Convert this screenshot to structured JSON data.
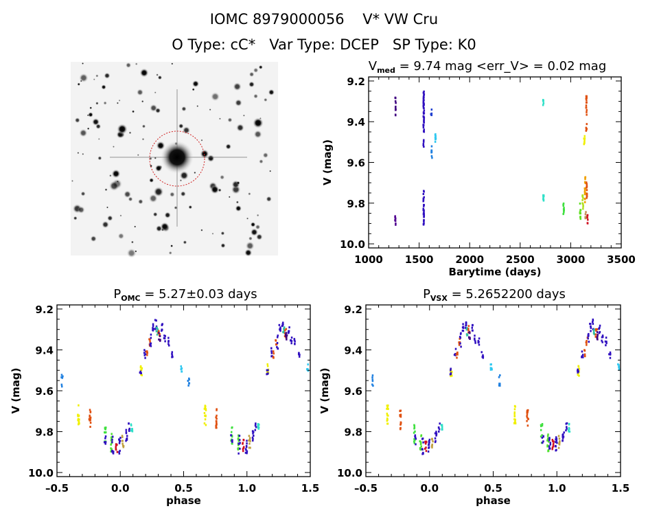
{
  "header": {
    "line1": "IOMC 8979000056    V* VW Cru",
    "line2": "O Type: cC*   Var Type: DCEP   SP Type: K0"
  },
  "image_panel": {
    "type": "star-field-thumbnail",
    "circle_color": "#d02020"
  },
  "chart_data": [
    {
      "type": "scatter",
      "title_main": "V",
      "title_sub": "med",
      "title_rest": " = 9.74 mag <err_V> = 0.02 mag",
      "xlabel": "Barytime (days)",
      "ylabel": "V (mag)",
      "xlim": [
        1000,
        3500
      ],
      "ylim": [
        9.18,
        10.02
      ],
      "y_inverted": true,
      "xticks": [
        "1000",
        "1500",
        "2000",
        "2500",
        "3000",
        "3500"
      ],
      "yticks": [
        "9.2",
        "9.4",
        "9.6",
        "9.8",
        "10.0"
      ],
      "clusters": [
        {
          "x": 1265,
          "y": [
            9.28,
            9.37
          ],
          "n": 12,
          "color": "#400080"
        },
        {
          "x": 1265,
          "y": [
            9.85,
            9.91
          ],
          "n": 8,
          "color": "#500090"
        },
        {
          "x": 1545,
          "y": [
            9.25,
            9.45
          ],
          "n": 40,
          "color": "#3010c0"
        },
        {
          "x": 1545,
          "y": [
            9.49,
            9.53
          ],
          "n": 6,
          "color": "#3010c0"
        },
        {
          "x": 1545,
          "y": [
            9.74,
            9.91
          ],
          "n": 30,
          "color": "#3010c0"
        },
        {
          "x": 1620,
          "y": [
            9.34,
            9.37
          ],
          "n": 5,
          "color": "#2040d0"
        },
        {
          "x": 1625,
          "y": [
            9.52,
            9.59
          ],
          "n": 8,
          "color": "#2080e0"
        },
        {
          "x": 1662,
          "y": [
            9.46,
            9.5
          ],
          "n": 8,
          "color": "#30c8f0"
        },
        {
          "x": 2730,
          "y": [
            9.29,
            9.32
          ],
          "n": 6,
          "color": "#30e0c8"
        },
        {
          "x": 2730,
          "y": [
            9.76,
            9.8
          ],
          "n": 8,
          "color": "#30e0c8"
        },
        {
          "x": 2930,
          "y": [
            9.78,
            9.86
          ],
          "n": 12,
          "color": "#40e040"
        },
        {
          "x": 3095,
          "y": [
            9.8,
            9.89
          ],
          "n": 14,
          "color": "#60e020"
        },
        {
          "x": 3120,
          "y": [
            9.76,
            9.83
          ],
          "n": 10,
          "color": "#b0e020"
        },
        {
          "x": 3135,
          "y": [
            9.47,
            9.53
          ],
          "n": 8,
          "color": "#f0f000"
        },
        {
          "x": 3142,
          "y": [
            9.67,
            9.8
          ],
          "n": 16,
          "color": "#f0a000"
        },
        {
          "x": 3155,
          "y": [
            9.27,
            9.37
          ],
          "n": 14,
          "color": "#e05010"
        },
        {
          "x": 3155,
          "y": [
            9.41,
            9.45
          ],
          "n": 6,
          "color": "#e05010"
        },
        {
          "x": 3158,
          "y": [
            9.69,
            9.78
          ],
          "n": 12,
          "color": "#e05010"
        },
        {
          "x": 3148,
          "y": [
            9.84,
            9.88
          ],
          "n": 6,
          "color": "#c09050"
        },
        {
          "x": 3168,
          "y": [
            9.85,
            9.9
          ],
          "n": 6,
          "color": "#d01020"
        }
      ]
    },
    {
      "type": "scatter",
      "title_main": "P",
      "title_sub": "OMC",
      "title_rest": " = 5.27±0.03 days",
      "xlabel": "phase",
      "ylabel": "V (mag)",
      "xlim": [
        -0.5,
        1.5
      ],
      "ylim": [
        9.18,
        10.02
      ],
      "y_inverted": true,
      "xticks": [
        "-0.5",
        "0.0",
        "0.5",
        "1.0",
        "1.5"
      ],
      "yticks": [
        "9.2",
        "9.4",
        "9.6",
        "9.8",
        "10.0"
      ],
      "phase_repeat": true,
      "clusters": [
        {
          "x": 0.54,
          "y": [
            9.52,
            9.58
          ],
          "n": 6,
          "color": "#2080e0"
        },
        {
          "x": 0.67,
          "y": [
            9.67,
            9.77
          ],
          "n": 14,
          "color": "#f0f000"
        },
        {
          "x": 0.76,
          "y": [
            9.69,
            9.79
          ],
          "n": 14,
          "color": "#e05010"
        },
        {
          "x": 0.88,
          "y": [
            9.76,
            9.86
          ],
          "n": 10,
          "color": "#40e040"
        },
        {
          "x": 0.88,
          "y": [
            9.81,
            9.87
          ],
          "n": 5,
          "color": "#3010c0"
        },
        {
          "x": 0.93,
          "y": [
            9.81,
            9.9
          ],
          "n": 12,
          "color": "#50e030"
        },
        {
          "x": 0.94,
          "y": [
            9.82,
            9.91
          ],
          "n": 8,
          "color": "#3010c0"
        },
        {
          "x": 0.97,
          "y": [
            9.84,
            9.9
          ],
          "n": 8,
          "color": "#d01020"
        },
        {
          "x": 0.995,
          "y": [
            9.82,
            9.91
          ],
          "n": 10,
          "color": "#3010c0"
        },
        {
          "x": 0.02,
          "y": [
            9.82,
            9.88
          ],
          "n": 8,
          "color": "#c0a040"
        },
        {
          "x": 0.05,
          "y": [
            9.79,
            9.86
          ],
          "n": 8,
          "color": "#3010c0"
        },
        {
          "x": 0.07,
          "y": [
            9.75,
            9.8
          ],
          "n": 5,
          "color": "#3010c0"
        },
        {
          "x": 0.09,
          "y": [
            9.76,
            9.8
          ],
          "n": 8,
          "color": "#30e0c8"
        },
        {
          "x": 0.165,
          "y": [
            9.47,
            9.53
          ],
          "n": 8,
          "color": "#f0f000"
        },
        {
          "x": 0.16,
          "y": [
            9.49,
            9.52
          ],
          "n": 5,
          "color": "#3010c0"
        },
        {
          "x": 0.195,
          "y": [
            9.39,
            9.44
          ],
          "n": 6,
          "color": "#3010c0"
        },
        {
          "x": 0.21,
          "y": [
            9.4,
            9.44
          ],
          "n": 5,
          "color": "#e05010"
        },
        {
          "x": 0.23,
          "y": [
            9.34,
            9.38
          ],
          "n": 5,
          "color": "#e05010"
        },
        {
          "x": 0.24,
          "y": [
            9.31,
            9.4
          ],
          "n": 6,
          "color": "#3010c0"
        },
        {
          "x": 0.26,
          "y": [
            9.27,
            9.31
          ],
          "n": 6,
          "color": "#3010c0"
        },
        {
          "x": 0.28,
          "y": [
            9.25,
            9.3
          ],
          "n": 6,
          "color": "#3010c0"
        },
        {
          "x": 0.29,
          "y": [
            9.29,
            9.33
          ],
          "n": 6,
          "color": "#30c0a0"
        },
        {
          "x": 0.305,
          "y": [
            9.28,
            9.34
          ],
          "n": 6,
          "color": "#e05010"
        },
        {
          "x": 0.31,
          "y": [
            9.31,
            9.36
          ],
          "n": 6,
          "color": "#400080"
        },
        {
          "x": 0.33,
          "y": [
            9.27,
            9.32
          ],
          "n": 6,
          "color": "#3010c0"
        },
        {
          "x": 0.35,
          "y": [
            9.33,
            9.37
          ],
          "n": 5,
          "color": "#3010c0"
        },
        {
          "x": 0.38,
          "y": [
            9.34,
            9.38
          ],
          "n": 5,
          "color": "#3010c0"
        },
        {
          "x": 0.41,
          "y": [
            9.41,
            9.44
          ],
          "n": 5,
          "color": "#3010c0"
        },
        {
          "x": 0.48,
          "y": [
            9.47,
            9.51
          ],
          "n": 6,
          "color": "#30c8f0"
        }
      ]
    },
    {
      "type": "scatter",
      "title_main": "P",
      "title_sub": "VSX",
      "title_rest": " = 5.2652200 days",
      "xlabel": "phase",
      "ylabel": "V (mag)",
      "xlim": [
        -0.5,
        1.5
      ],
      "ylim": [
        9.18,
        10.02
      ],
      "y_inverted": true,
      "xticks": [
        "-0.5",
        "0.0",
        "0.5",
        "1.0",
        "1.5"
      ],
      "yticks": [
        "9.2",
        "9.4",
        "9.6",
        "9.8",
        "10.0"
      ],
      "phase_repeat": true,
      "clusters": [
        {
          "x": 0.55,
          "y": [
            9.52,
            9.58
          ],
          "n": 6,
          "color": "#2080e0"
        },
        {
          "x": 0.67,
          "y": [
            9.67,
            9.77
          ],
          "n": 14,
          "color": "#f0f000"
        },
        {
          "x": 0.77,
          "y": [
            9.69,
            9.79
          ],
          "n": 14,
          "color": "#e05010"
        },
        {
          "x": 0.88,
          "y": [
            9.76,
            9.86
          ],
          "n": 10,
          "color": "#40e040"
        },
        {
          "x": 0.89,
          "y": [
            9.81,
            9.87
          ],
          "n": 5,
          "color": "#3010c0"
        },
        {
          "x": 0.93,
          "y": [
            9.81,
            9.9
          ],
          "n": 12,
          "color": "#50e030"
        },
        {
          "x": 0.945,
          "y": [
            9.82,
            9.91
          ],
          "n": 8,
          "color": "#3010c0"
        },
        {
          "x": 0.97,
          "y": [
            9.84,
            9.9
          ],
          "n": 8,
          "color": "#d01020"
        },
        {
          "x": 0.995,
          "y": [
            9.82,
            9.91
          ],
          "n": 10,
          "color": "#3010c0"
        },
        {
          "x": 0.02,
          "y": [
            9.82,
            9.88
          ],
          "n": 8,
          "color": "#c0a040"
        },
        {
          "x": 0.05,
          "y": [
            9.79,
            9.86
          ],
          "n": 8,
          "color": "#3010c0"
        },
        {
          "x": 0.075,
          "y": [
            9.75,
            9.8
          ],
          "n": 5,
          "color": "#3010c0"
        },
        {
          "x": 0.095,
          "y": [
            9.76,
            9.8
          ],
          "n": 8,
          "color": "#30e0c8"
        },
        {
          "x": 0.17,
          "y": [
            9.47,
            9.53
          ],
          "n": 8,
          "color": "#f0f000"
        },
        {
          "x": 0.165,
          "y": [
            9.49,
            9.52
          ],
          "n": 5,
          "color": "#3010c0"
        },
        {
          "x": 0.2,
          "y": [
            9.39,
            9.44
          ],
          "n": 6,
          "color": "#3010c0"
        },
        {
          "x": 0.215,
          "y": [
            9.4,
            9.44
          ],
          "n": 5,
          "color": "#e05010"
        },
        {
          "x": 0.235,
          "y": [
            9.34,
            9.38
          ],
          "n": 5,
          "color": "#e05010"
        },
        {
          "x": 0.245,
          "y": [
            9.31,
            9.4
          ],
          "n": 6,
          "color": "#3010c0"
        },
        {
          "x": 0.265,
          "y": [
            9.27,
            9.31
          ],
          "n": 6,
          "color": "#3010c0"
        },
        {
          "x": 0.285,
          "y": [
            9.25,
            9.3
          ],
          "n": 6,
          "color": "#3010c0"
        },
        {
          "x": 0.295,
          "y": [
            9.29,
            9.33
          ],
          "n": 6,
          "color": "#30c0a0"
        },
        {
          "x": 0.31,
          "y": [
            9.28,
            9.34
          ],
          "n": 6,
          "color": "#e05010"
        },
        {
          "x": 0.315,
          "y": [
            9.31,
            9.36
          ],
          "n": 6,
          "color": "#400080"
        },
        {
          "x": 0.335,
          "y": [
            9.27,
            9.32
          ],
          "n": 6,
          "color": "#3010c0"
        },
        {
          "x": 0.355,
          "y": [
            9.33,
            9.37
          ],
          "n": 5,
          "color": "#3010c0"
        },
        {
          "x": 0.385,
          "y": [
            9.34,
            9.38
          ],
          "n": 5,
          "color": "#3010c0"
        },
        {
          "x": 0.415,
          "y": [
            9.41,
            9.44
          ],
          "n": 5,
          "color": "#3010c0"
        },
        {
          "x": 0.485,
          "y": [
            9.47,
            9.51
          ],
          "n": 6,
          "color": "#30c8f0"
        }
      ]
    }
  ]
}
